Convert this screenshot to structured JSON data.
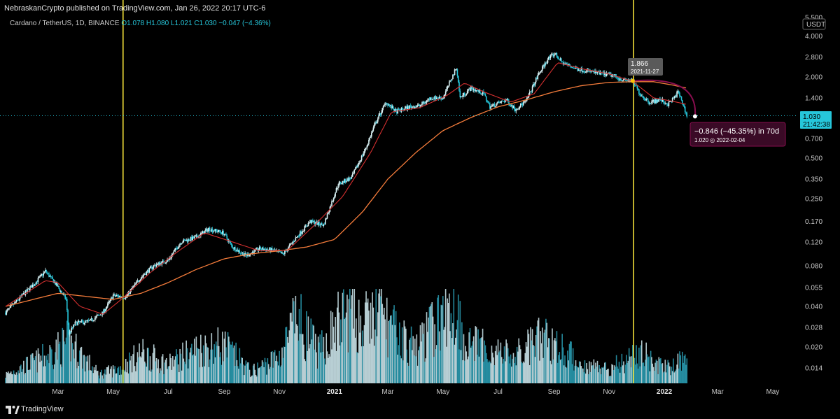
{
  "header": {
    "published": "NebraskanCrypto published on TradingView.com, Jan 26, 2022 20:17 UTC-6",
    "symbol": "Cardano / TetherUS, 1D, BINANCE",
    "ohlc": "O1.078 H1.080 L1.021 C1.030 −0.047 (−4.36%)"
  },
  "footer": {
    "brand": "TradingView"
  },
  "colors": {
    "background": "#000000",
    "candle_up": "#d9f2f5",
    "candle_down": "#26c6da",
    "ema_fast": "#d32f2f",
    "ema_slow": "#f57c3b",
    "vertical_marker": "#ffeb3b",
    "forecast": "#880e4f",
    "price_label": "#26c6da"
  },
  "chart_data": {
    "type": "candlestick",
    "symbol": "ADAUSDT",
    "interval": "1D",
    "y_scale": "log",
    "x_axis": {
      "tick_labels": [
        "Mar",
        "May",
        "Jul",
        "Sep",
        "Nov",
        "2021",
        "Mar",
        "May",
        "Jul",
        "Sep",
        "Nov",
        "2022",
        "Mar",
        "May"
      ],
      "bold_labels": [
        "2021",
        "2022"
      ]
    },
    "y_axis": {
      "currency": "USDT",
      "tick_labels": [
        "5.500",
        "4.000",
        "2.800",
        "2.000",
        "1.400",
        "1.030",
        "0.700",
        "0.500",
        "0.350",
        "0.250",
        "0.170",
        "0.120",
        "0.080",
        "0.055",
        "0.040",
        "0.028",
        "0.020",
        "0.014"
      ],
      "ticks": [
        5.5,
        4.0,
        2.8,
        2.0,
        1.4,
        0.7,
        0.5,
        0.35,
        0.25,
        0.17,
        0.12,
        0.08,
        0.055,
        0.04,
        0.028,
        0.02,
        0.014
      ]
    },
    "last_price": {
      "value": 1.03,
      "label": "1.030",
      "countdown": "21:42:38"
    },
    "price_path": [
      [
        "2020-01-03",
        0.036
      ],
      [
        "2020-01-20",
        0.047
      ],
      [
        "2020-02-05",
        0.06
      ],
      [
        "2020-02-16",
        0.073
      ],
      [
        "2020-02-28",
        0.058
      ],
      [
        "2020-03-10",
        0.045
      ],
      [
        "2020-03-13",
        0.025
      ],
      [
        "2020-03-20",
        0.03
      ],
      [
        "2020-04-05",
        0.031
      ],
      [
        "2020-04-20",
        0.036
      ],
      [
        "2020-05-01",
        0.048
      ],
      [
        "2020-05-15",
        0.047
      ],
      [
        "2020-06-01",
        0.066
      ],
      [
        "2020-06-15",
        0.08
      ],
      [
        "2020-07-01",
        0.088
      ],
      [
        "2020-07-15",
        0.12
      ],
      [
        "2020-08-01",
        0.13
      ],
      [
        "2020-08-15",
        0.15
      ],
      [
        "2020-08-31",
        0.14
      ],
      [
        "2020-09-10",
        0.11
      ],
      [
        "2020-09-25",
        0.095
      ],
      [
        "2020-10-10",
        0.107
      ],
      [
        "2020-10-25",
        0.104
      ],
      [
        "2020-11-05",
        0.097
      ],
      [
        "2020-11-20",
        0.13
      ],
      [
        "2020-12-05",
        0.17
      ],
      [
        "2020-12-20",
        0.16
      ],
      [
        "2021-01-05",
        0.32
      ],
      [
        "2021-01-20",
        0.36
      ],
      [
        "2021-02-05",
        0.6
      ],
      [
        "2021-02-15",
        0.9
      ],
      [
        "2021-02-27",
        1.3
      ],
      [
        "2021-03-10",
        1.1
      ],
      [
        "2021-03-25",
        1.2
      ],
      [
        "2021-04-05",
        1.22
      ],
      [
        "2021-04-18",
        1.4
      ],
      [
        "2021-05-01",
        1.4
      ],
      [
        "2021-05-16",
        2.35
      ],
      [
        "2021-05-20",
        1.4
      ],
      [
        "2021-06-01",
        1.65
      ],
      [
        "2021-06-15",
        1.5
      ],
      [
        "2021-06-22",
        1.2
      ],
      [
        "2021-07-10",
        1.35
      ],
      [
        "2021-07-20",
        1.15
      ],
      [
        "2021-08-01",
        1.32
      ],
      [
        "2021-08-15",
        2.1
      ],
      [
        "2021-08-25",
        2.7
      ],
      [
        "2021-09-02",
        2.97
      ],
      [
        "2021-09-10",
        2.55
      ],
      [
        "2021-09-25",
        2.3
      ],
      [
        "2021-10-10",
        2.2
      ],
      [
        "2021-10-25",
        2.1
      ],
      [
        "2021-11-05",
        2.05
      ],
      [
        "2021-11-16",
        1.9
      ],
      [
        "2021-11-27",
        1.866
      ],
      [
        "2021-12-05",
        1.5
      ],
      [
        "2021-12-15",
        1.3
      ],
      [
        "2021-12-28",
        1.35
      ],
      [
        "2022-01-05",
        1.25
      ],
      [
        "2022-01-12",
        1.4
      ],
      [
        "2022-01-16",
        1.55
      ],
      [
        "2022-01-20",
        1.35
      ],
      [
        "2022-01-26",
        1.03
      ]
    ],
    "ema_fast_path": [
      [
        "2020-01-03",
        0.04
      ],
      [
        "2020-02-16",
        0.062
      ],
      [
        "2020-03-01",
        0.06
      ],
      [
        "2020-03-25",
        0.04
      ],
      [
        "2020-04-20",
        0.035
      ],
      [
        "2020-05-10",
        0.045
      ],
      [
        "2020-06-10",
        0.07
      ],
      [
        "2020-07-10",
        0.1
      ],
      [
        "2020-08-10",
        0.14
      ],
      [
        "2020-09-10",
        0.12
      ],
      [
        "2020-10-10",
        0.103
      ],
      [
        "2020-11-10",
        0.104
      ],
      [
        "2020-12-10",
        0.16
      ],
      [
        "2021-01-10",
        0.26
      ],
      [
        "2021-02-10",
        0.55
      ],
      [
        "2021-03-05",
        1.1
      ],
      [
        "2021-04-05",
        1.18
      ],
      [
        "2021-05-05",
        1.45
      ],
      [
        "2021-05-25",
        1.8
      ],
      [
        "2021-06-15",
        1.55
      ],
      [
        "2021-07-15",
        1.3
      ],
      [
        "2021-08-10",
        1.5
      ],
      [
        "2021-09-05",
        2.55
      ],
      [
        "2021-10-01",
        2.3
      ],
      [
        "2021-11-01",
        2.1
      ],
      [
        "2021-11-27",
        1.85
      ],
      [
        "2021-12-20",
        1.4
      ],
      [
        "2022-01-10",
        1.32
      ],
      [
        "2022-01-26",
        1.25
      ]
    ],
    "ema_slow_path": [
      [
        "2020-01-03",
        0.04
      ],
      [
        "2020-03-01",
        0.05
      ],
      [
        "2020-05-01",
        0.045
      ],
      [
        "2020-06-01",
        0.05
      ],
      [
        "2020-07-01",
        0.06
      ],
      [
        "2020-08-01",
        0.075
      ],
      [
        "2020-09-01",
        0.09
      ],
      [
        "2020-10-01",
        0.098
      ],
      [
        "2020-11-01",
        0.103
      ],
      [
        "2020-12-01",
        0.11
      ],
      [
        "2021-01-01",
        0.125
      ],
      [
        "2021-02-01",
        0.2
      ],
      [
        "2021-03-01",
        0.35
      ],
      [
        "2021-04-01",
        0.55
      ],
      [
        "2021-05-01",
        0.8
      ],
      [
        "2021-06-01",
        1.0
      ],
      [
        "2021-07-01",
        1.2
      ],
      [
        "2021-08-01",
        1.35
      ],
      [
        "2021-09-01",
        1.55
      ],
      [
        "2021-10-01",
        1.72
      ],
      [
        "2021-11-01",
        1.82
      ],
      [
        "2021-11-27",
        1.84
      ],
      [
        "2021-12-20",
        1.84
      ],
      [
        "2022-01-10",
        1.74
      ],
      [
        "2022-01-26",
        1.65
      ]
    ],
    "volume_relative": [
      [
        "2020-01-01",
        0.1
      ],
      [
        "2020-02-16",
        0.35
      ],
      [
        "2020-03-13",
        0.55
      ],
      [
        "2020-04-15",
        0.12
      ],
      [
        "2020-05-10",
        0.2
      ],
      [
        "2020-06-01",
        0.4
      ],
      [
        "2020-07-01",
        0.25
      ],
      [
        "2020-08-01",
        0.45
      ],
      [
        "2020-09-01",
        0.5
      ],
      [
        "2020-10-01",
        0.15
      ],
      [
        "2020-11-01",
        0.35
      ],
      [
        "2020-11-20",
        0.85
      ],
      [
        "2020-12-15",
        0.4
      ],
      [
        "2021-01-05",
        0.8
      ],
      [
        "2021-01-20",
        0.95
      ],
      [
        "2021-02-01",
        0.75
      ],
      [
        "2021-02-20",
        0.95
      ],
      [
        "2021-03-05",
        0.7
      ],
      [
        "2021-04-01",
        0.45
      ],
      [
        "2021-04-20",
        0.75
      ],
      [
        "2021-05-16",
        1.0
      ],
      [
        "2021-05-25",
        0.55
      ],
      [
        "2021-06-20",
        0.45
      ],
      [
        "2021-07-20",
        0.35
      ],
      [
        "2021-08-20",
        0.6
      ],
      [
        "2021-09-05",
        0.5
      ],
      [
        "2021-10-01",
        0.25
      ],
      [
        "2021-11-01",
        0.2
      ],
      [
        "2021-12-05",
        0.4
      ],
      [
        "2022-01-01",
        0.2
      ],
      [
        "2022-01-20",
        0.3
      ]
    ],
    "vertical_markers": [
      "2020-05-12",
      "2021-11-28"
    ],
    "annotation_start": {
      "value": "1.866",
      "date": "2021-11-27"
    },
    "forecast": {
      "change": "−0.846 (−45.35%) in 70d",
      "target": "1.020 ◎ 2022-02-04",
      "target_value": 1.02,
      "target_date": "2022-02-04"
    }
  }
}
